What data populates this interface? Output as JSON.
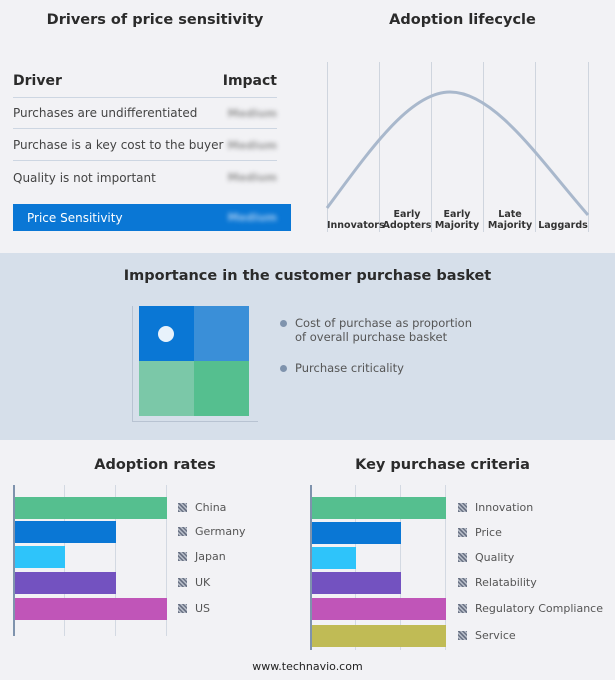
{
  "drivers": {
    "title": "Drivers of price sensitivity",
    "col_driver": "Driver",
    "col_impact": "Impact",
    "rows": [
      {
        "driver": "Purchases are undifferentiated",
        "impact": "Medium"
      },
      {
        "driver": "Purchase is a key cost to the buyer",
        "impact": "Medium"
      },
      {
        "driver": "Quality is not important",
        "impact": "Medium"
      }
    ],
    "summary": {
      "label": "Price Sensitivity",
      "impact": "Medium",
      "color": "#0a77d5"
    }
  },
  "lifecycle": {
    "title": "Adoption lifecycle",
    "stages": [
      "Innovators",
      "Early Adopters",
      "Early Majority",
      "Late Majority",
      "Laggards"
    ]
  },
  "basket": {
    "title": "Importance in the customer purchase basket",
    "legend": [
      "Cost of purchase as proportion of overall purchase basket",
      "Purchase criticality"
    ],
    "quadrant_colors": [
      "#0a77d5",
      "#3a8fd8",
      "#7bc8a8",
      "#55bf8f"
    ]
  },
  "chart_data": [
    {
      "type": "bar",
      "title": "Adoption rates",
      "categories": [
        "China",
        "Germany",
        "Japan",
        "UK",
        "US"
      ],
      "values": [
        3,
        2,
        1,
        2,
        3
      ],
      "xlim": [
        0,
        3
      ],
      "grid": true,
      "legend": "right",
      "colors": [
        "#55bf8f",
        "#0a77d5",
        "#2ec4fa",
        "#7352c0",
        "#c055b8"
      ]
    },
    {
      "type": "bar",
      "title": "Key purchase criteria",
      "categories": [
        "Innovation",
        "Price",
        "Quality",
        "Relatability",
        "Regulatory Compliance",
        "Service"
      ],
      "values": [
        3,
        2,
        1,
        2,
        3,
        3
      ],
      "xlim": [
        0,
        3
      ],
      "grid": true,
      "legend": "right",
      "colors": [
        "#55bf8f",
        "#0a77d5",
        "#2ec4fa",
        "#7352c0",
        "#c055b8",
        "#c0bb55"
      ]
    }
  ],
  "footer": "www.technavio.com"
}
